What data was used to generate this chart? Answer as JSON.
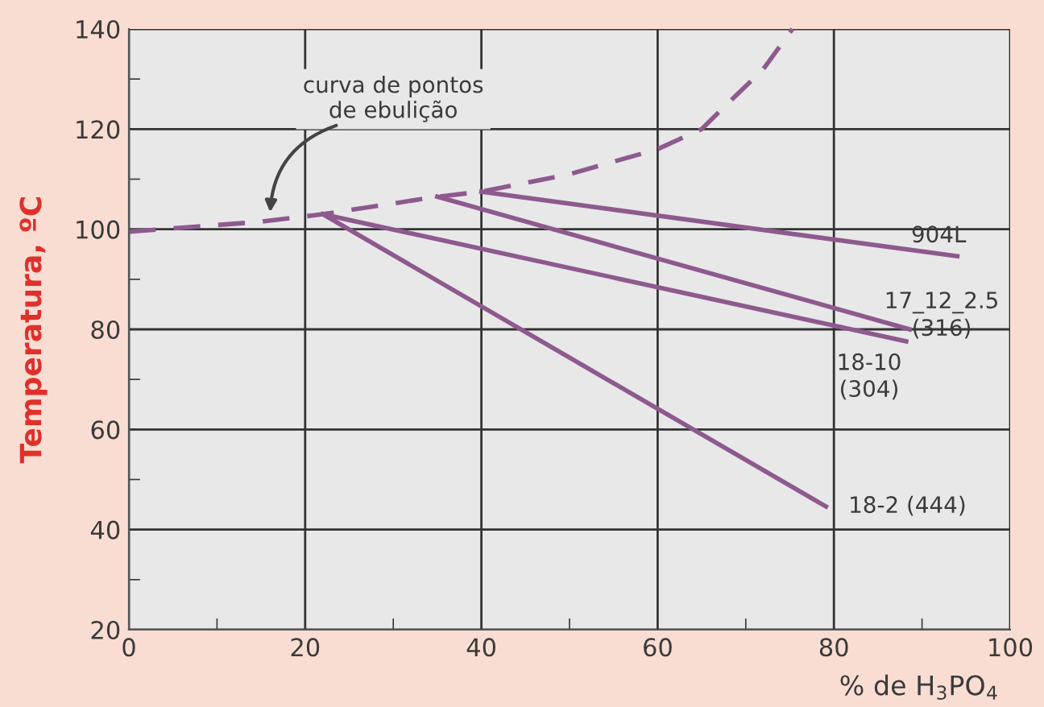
{
  "chart_data": {
    "type": "line",
    "ylabel": "Temperatura, ºC",
    "xlabel": "% de H$_{3}$PO$_{4}$",
    "xlim": [
      0,
      100
    ],
    "ylim": [
      20,
      140
    ],
    "xticks": [
      0,
      {
        "value": 10,
        "label": null
      },
      20,
      {
        "value": 30,
        "label": null
      },
      40,
      {
        "value": 50,
        "label": null
      },
      60,
      {
        "value": 70,
        "label": null
      },
      80,
      {
        "value": 90,
        "label": null
      },
      100
    ],
    "yticks": [
      20,
      {
        "value": 30,
        "label": null
      },
      40,
      {
        "value": 50,
        "label": null
      },
      60,
      {
        "value": 70,
        "label": null
      },
      80,
      {
        "value": 90,
        "label": null
      },
      100,
      {
        "value": 110,
        "label": null
      },
      120,
      {
        "value": 130,
        "label": null
      },
      140
    ],
    "grid": true,
    "legend": false,
    "annotations": [
      "curva de pontos\nde ebulição"
    ],
    "series": [
      {
        "color": "#8e5a8e",
        "line_style": "dashed",
        "x": [
          0,
          15,
          22,
          35,
          40,
          50,
          60,
          65,
          67.3,
          72,
          75.3
        ],
        "values": [
          99.5,
          101.5,
          103,
          106.5,
          107.5,
          111,
          116,
          120,
          124,
          132,
          140
        ]
      },
      {
        "name": "904L",
        "color": "#8e5a8e",
        "line_style": "solid",
        "x": [
          40,
          94
        ],
        "values": [
          107.5,
          94.6
        ]
      },
      {
        "name": "17_12_2.5\n(316)",
        "color": "#8e5a8e",
        "line_style": "solid",
        "x": [
          35,
          88.6
        ],
        "values": [
          106.5,
          80
        ]
      },
      {
        "name": "18-10\n(304)",
        "color": "#8e5a8e",
        "line_style": "solid",
        "x": [
          22,
          88.2
        ],
        "values": [
          103,
          77.6
        ]
      },
      {
        "name": "18-2 (444)",
        "color": "#8e5a8e",
        "line_style": "solid",
        "x": [
          22,
          79.1
        ],
        "values": [
          103,
          44.6
        ]
      }
    ]
  }
}
